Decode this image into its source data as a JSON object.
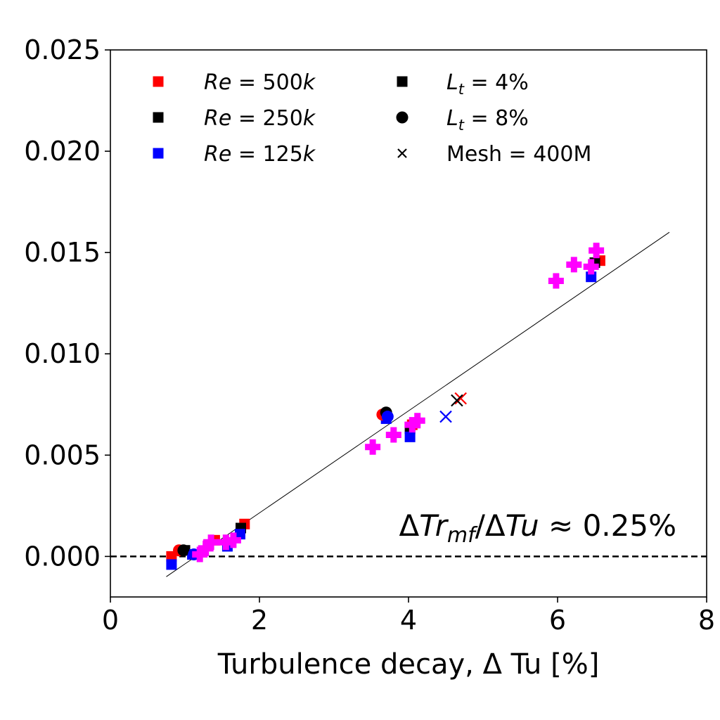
{
  "chart_data": {
    "type": "scatter",
    "xlabel": "Turbulence decay, Δ Tu [%]",
    "ylabel": "",
    "xlim": [
      0,
      8
    ],
    "ylim": [
      -0.002,
      0.025
    ],
    "xticks": [
      "0",
      "2",
      "4",
      "6",
      "8"
    ],
    "yticks": [
      "0.000",
      "0.005",
      "0.010",
      "0.015",
      "0.020",
      "0.025"
    ],
    "grid": false,
    "legend_position": "top",
    "legend_items": [
      {
        "label": "Re = 500k",
        "label_italic_part": "Re",
        "marker": "square",
        "color": "#ff0000"
      },
      {
        "label": "Re = 250k",
        "label_italic_part": "Re",
        "marker": "square",
        "color": "#000000"
      },
      {
        "label": "Re = 125k",
        "label_italic_part": "Re",
        "marker": "square",
        "color": "#0000ff"
      },
      {
        "label": "L_t = 4%",
        "marker": "square",
        "color": "#000000"
      },
      {
        "label": "L_t = 8%",
        "marker": "circle",
        "color": "#000000"
      },
      {
        "label": "Mesh = 400M",
        "marker": "x",
        "color": "#000000"
      }
    ],
    "annotation": "ΔTr_mf/ΔTu ≈ 0.25%",
    "reference_line": {
      "y": 0.0,
      "style": "dashed"
    },
    "fit_line": {
      "x": [
        0.75,
        7.5
      ],
      "y": [
        -0.001,
        0.016
      ]
    },
    "series": [
      {
        "name": "Re = 500k, L_t = 4%",
        "color": "#ff0000",
        "marker": "square",
        "points": [
          [
            0.82,
            0.0
          ],
          [
            1.4,
            0.0008
          ],
          [
            1.8,
            0.0016
          ],
          [
            4.05,
            0.0065
          ],
          [
            6.57,
            0.0146
          ]
        ]
      },
      {
        "name": "Re = 250k, L_t = 4%",
        "color": "#000000",
        "marker": "square",
        "points": [
          [
            1.0,
            0.0003
          ],
          [
            1.75,
            0.0014
          ],
          [
            4.02,
            0.0063
          ],
          [
            6.5,
            0.0145
          ]
        ]
      },
      {
        "name": "Re = 125k, L_t = 4%",
        "color": "#0000ff",
        "marker": "square",
        "points": [
          [
            0.82,
            -0.0004
          ],
          [
            1.1,
            0.0001
          ],
          [
            1.57,
            0.0005
          ],
          [
            1.74,
            0.0011
          ],
          [
            3.7,
            0.0068
          ],
          [
            4.02,
            0.0059
          ],
          [
            6.45,
            0.0138
          ]
        ]
      },
      {
        "name": "Re = 500k, L_t = 8%",
        "color": "#ff0000",
        "marker": "circle",
        "points": [
          [
            0.92,
            0.0003
          ],
          [
            3.65,
            0.007
          ]
        ]
      },
      {
        "name": "Re = 250k, L_t = 8%",
        "color": "#000000",
        "marker": "circle",
        "points": [
          [
            0.98,
            0.0003
          ],
          [
            3.7,
            0.0071
          ]
        ]
      },
      {
        "name": "Re = 125k, L_t = 8%",
        "color": "#0000ff",
        "marker": "circle",
        "points": [
          [
            1.12,
            0.0001
          ],
          [
            3.72,
            0.0069
          ]
        ]
      },
      {
        "name": "Re = 500k, Mesh = 400M",
        "color": "#ff0000",
        "marker": "x",
        "points": [
          [
            4.7,
            0.0078
          ]
        ]
      },
      {
        "name": "Re = 250k, Mesh = 400M",
        "color": "#000000",
        "marker": "x",
        "points": [
          [
            4.65,
            0.0077
          ]
        ]
      },
      {
        "name": "Re = 125k, Mesh = 400M",
        "color": "#0000ff",
        "marker": "x",
        "points": [
          [
            4.5,
            0.0069
          ]
        ]
      },
      {
        "color": "#ff00ff",
        "marker": "plus",
        "points": [
          [
            1.2,
            0.0001
          ],
          [
            1.28,
            0.0004
          ],
          [
            1.35,
            0.0007
          ],
          [
            1.55,
            0.0007
          ],
          [
            1.65,
            0.0008
          ],
          [
            3.52,
            0.0054
          ],
          [
            3.8,
            0.006
          ],
          [
            4.05,
            0.0065
          ],
          [
            4.12,
            0.0067
          ],
          [
            5.98,
            0.0136
          ],
          [
            6.22,
            0.0144
          ],
          [
            6.45,
            0.0143
          ],
          [
            6.52,
            0.0151
          ]
        ]
      }
    ]
  }
}
